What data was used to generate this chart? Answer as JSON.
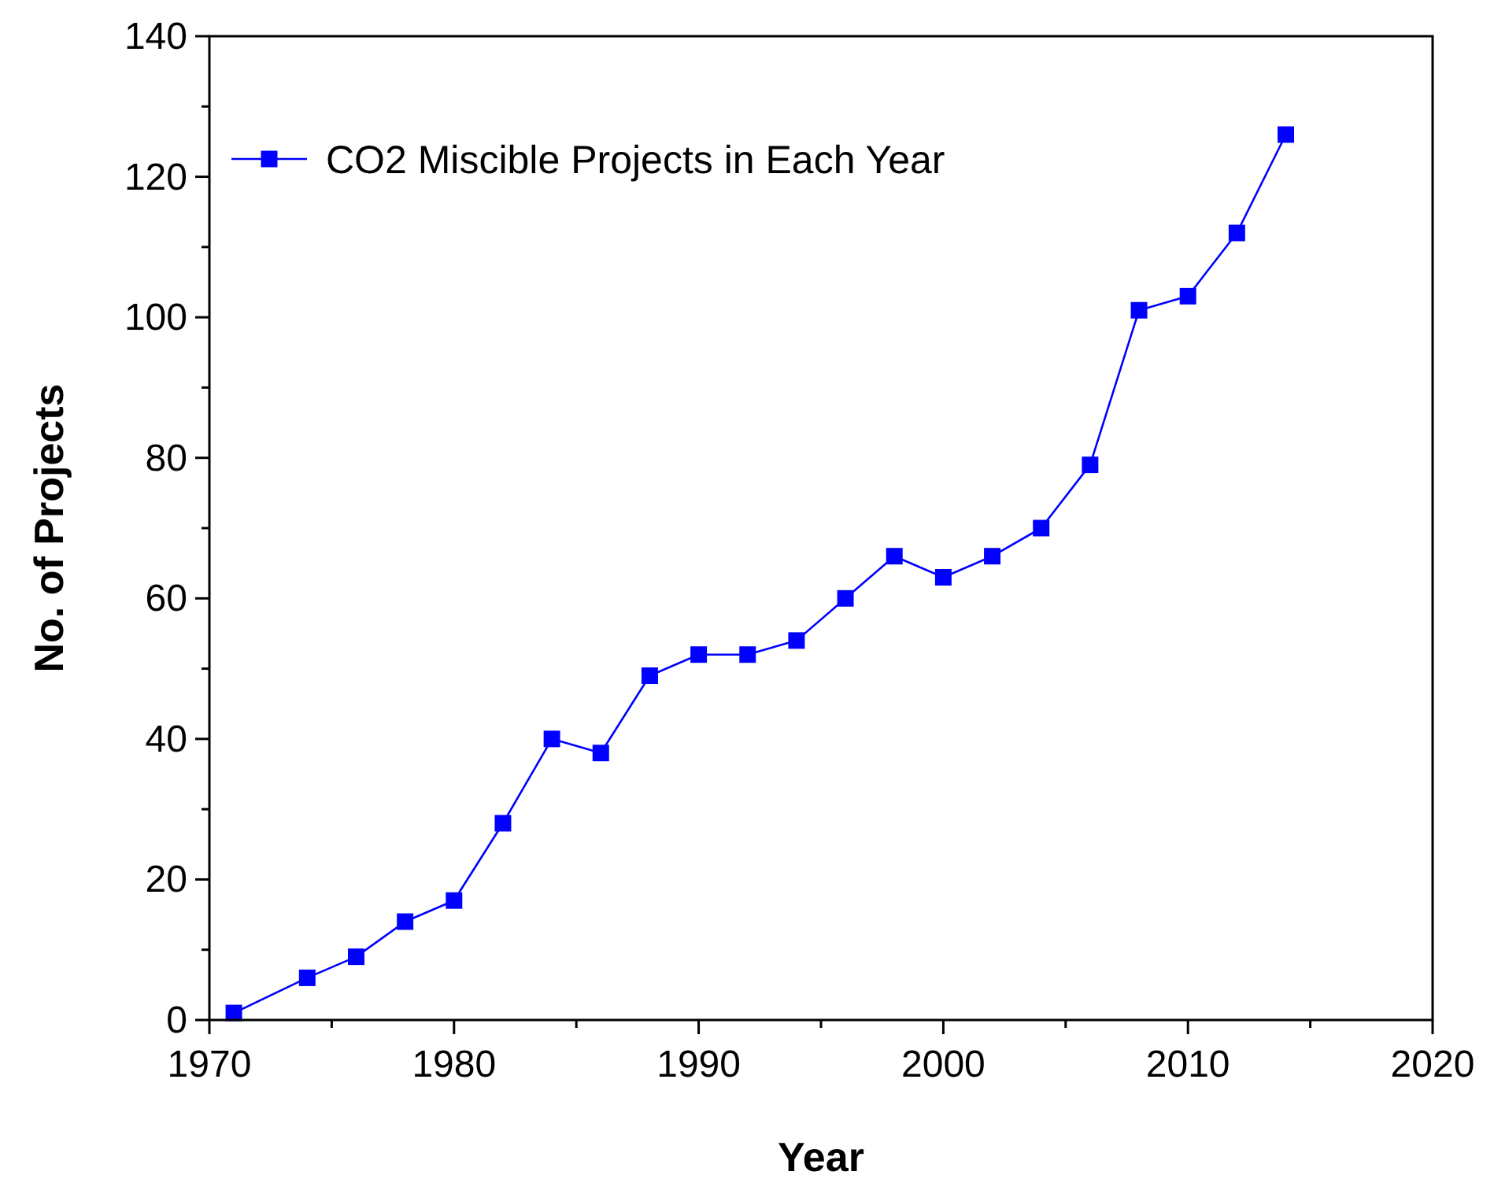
{
  "chart_data": {
    "type": "line",
    "xlabel": "Year",
    "ylabel": "No. of Projects",
    "xlim": [
      1970,
      2020
    ],
    "xticks": [
      1970,
      1980,
      1990,
      2000,
      2010,
      2020
    ],
    "ylim": [
      0,
      140
    ],
    "yticks": [
      0,
      20,
      40,
      60,
      80,
      100,
      120,
      140
    ],
    "grid": false,
    "legend": "top left",
    "marker": "square",
    "line_style": "solid",
    "series": [
      {
        "name": "CO2 Miscible Projects in Each Year",
        "color": "#0000ff",
        "x": [
          1971,
          1974,
          1976,
          1978,
          1980,
          1982,
          1984,
          1986,
          1988,
          1990,
          1992,
          1994,
          1996,
          1998,
          2000,
          2002,
          2004,
          2006,
          2008,
          2010,
          2012,
          2014
        ],
        "values": [
          1,
          6,
          9,
          14,
          17,
          28,
          40,
          38,
          49,
          52,
          52,
          54,
          60,
          66,
          63,
          66,
          70,
          79,
          101,
          103,
          112,
          126
        ]
      }
    ]
  }
}
